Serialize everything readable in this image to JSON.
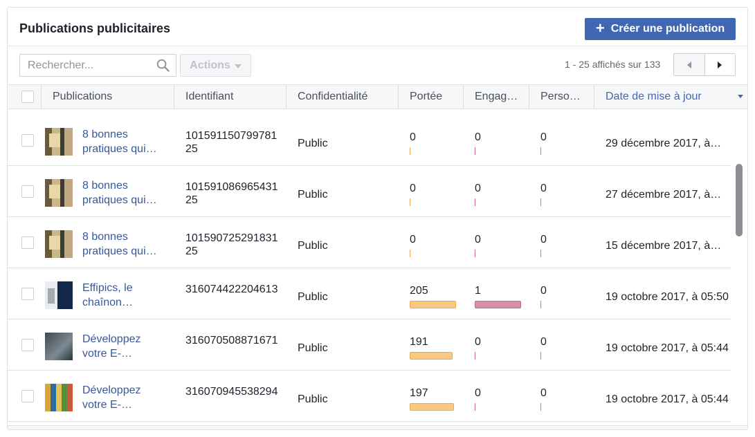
{
  "header": {
    "title": "Publications publicitaires",
    "create_button": "Créer une publication",
    "create_icon": "+"
  },
  "toolbar": {
    "search_placeholder": "Rechercher...",
    "actions_label": "Actions",
    "paging_text": "1 - 25 affichés sur 133"
  },
  "columns": {
    "publications": "Publications",
    "identifiant": "Identifiant",
    "confidentialite": "Confidentialité",
    "portee": "Portée",
    "engagement": "Engag…",
    "personnes": "Perso…",
    "date": "Date de mise à jour"
  },
  "rows": [
    {
      "thumb": "book",
      "title": "8 bonnes pratiques qui…",
      "id": "10159115079978125",
      "conf": "Public",
      "reach": "0",
      "reach_fraction": 0,
      "eng": "0",
      "eng_fraction": 0,
      "pers": "0",
      "date": "29 décembre 2017, à…"
    },
    {
      "thumb": "book",
      "title": "8 bonnes pratiques qui…",
      "id": "10159108696543125",
      "conf": "Public",
      "reach": "0",
      "reach_fraction": 0,
      "eng": "0",
      "eng_fraction": 0,
      "pers": "0",
      "date": "27 décembre 2017, à…"
    },
    {
      "thumb": "book",
      "title": "8 bonnes pratiques qui…",
      "id": "10159072529183125",
      "conf": "Public",
      "reach": "0",
      "reach_fraction": 0,
      "eng": "0",
      "eng_fraction": 0,
      "pers": "0",
      "date": "15 décembre 2017, à…"
    },
    {
      "thumb": "eff",
      "title": "Effipics, le chaînon…",
      "id": "316074422204613",
      "conf": "Public",
      "reach": "205",
      "reach_fraction": 1.0,
      "eng": "1",
      "eng_fraction": 1.0,
      "pers": "0",
      "date": "19 octobre 2017, à 05:50"
    },
    {
      "thumb": "dev1",
      "title": "Développez votre E-…",
      "id": "316070508871671",
      "conf": "Public",
      "reach": "191",
      "reach_fraction": 0.93,
      "eng": "0",
      "eng_fraction": 0,
      "pers": "0",
      "date": "19 octobre 2017, à 05:44"
    },
    {
      "thumb": "dev2",
      "title": "Développez votre E-…",
      "id": "316070945538294",
      "conf": "Public",
      "reach": "197",
      "reach_fraction": 0.96,
      "eng": "0",
      "eng_fraction": 0,
      "pers": "0",
      "date": "19 octobre 2017, à 05:44"
    }
  ],
  "colors": {
    "primary": "#4267b2",
    "link": "#365899",
    "reach_bar": "#f9c981",
    "engagement_bar": "#d790aa"
  }
}
